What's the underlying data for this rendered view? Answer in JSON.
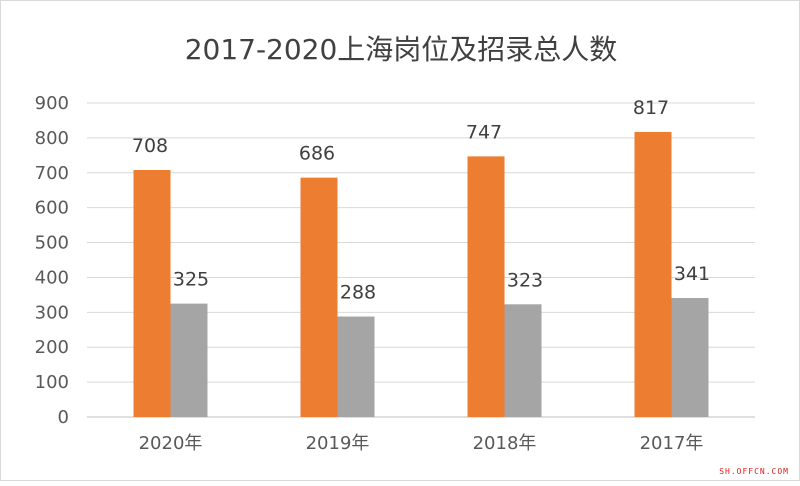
{
  "chart_data": {
    "type": "bar",
    "title": "2017-2020上海岗位及招录总人数",
    "categories": [
      "2020年",
      "2019年",
      "2018年",
      "2017年"
    ],
    "series": [
      {
        "values": [
          708,
          686,
          747,
          817
        ],
        "color": "#ed7d31"
      },
      {
        "values": [
          325,
          288,
          323,
          341
        ],
        "color": "#a5a5a5"
      }
    ],
    "ylim": [
      0,
      900
    ],
    "yticks": [
      0,
      100,
      200,
      300,
      400,
      500,
      600,
      700,
      800,
      900
    ],
    "grid": true,
    "legend": "none",
    "data_labels": true
  },
  "watermark": "SH.OFFCN.COM"
}
